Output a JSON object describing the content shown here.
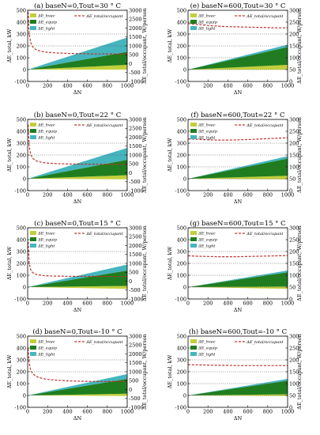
{
  "figure": {
    "xlabel": "ΔN",
    "ylabel_left": "ΔE_total, kW",
    "ylabel_right": "ΔE_total/occupant, W/person"
  },
  "legend": {
    "hvac": "ΔE_hvac",
    "equip": "ΔE_equip",
    "light": "ΔE_light",
    "total_per_occupant": "ΔE_total/occupant"
  },
  "colors": {
    "hvac": "#c2cf3a",
    "equip": "#1f7d1f",
    "light": "#45b5be",
    "per_occupant": "#c0302a",
    "hgrid": "#555555"
  },
  "chart_data": [
    {
      "type": "area",
      "label": "(a) baseN=0,Tout=30 ° C",
      "x": [
        0,
        1000
      ],
      "xlim": [
        0,
        1000
      ],
      "xticks": [
        0,
        200,
        400,
        600,
        800,
        1000
      ],
      "ylim": [
        -100,
        500
      ],
      "yticks": [
        -100,
        0,
        100,
        200,
        300,
        400,
        500
      ],
      "y2lim": [
        -1000,
        3000
      ],
      "y2ticks": [
        -1000,
        -500,
        0,
        500,
        1000,
        1500,
        2000,
        2500,
        3000
      ],
      "grid_y": [
        200,
        300
      ],
      "series": [
        {
          "name": "ΔE_hvac",
          "lower": [
            0,
            0
          ],
          "upper": [
            0,
            40
          ]
        },
        {
          "name": "ΔE_equip",
          "lower": [
            0,
            40
          ],
          "upper": [
            0,
            150
          ]
        },
        {
          "name": "ΔE_light",
          "lower": [
            0,
            150
          ],
          "upper": [
            0,
            270
          ]
        }
      ],
      "per_occupant": {
        "x": [
          5,
          15,
          30,
          50,
          75,
          100,
          150,
          200,
          300,
          400,
          500,
          600,
          700,
          800,
          900,
          1000
        ],
        "y": [
          2900,
          1700,
          1200,
          950,
          820,
          750,
          680,
          640,
          600,
          580,
          565,
          555,
          548,
          545,
          542,
          540
        ]
      }
    },
    {
      "type": "area",
      "label": "(e) baseN=600,Tout=30 ° C",
      "x": [
        0,
        1000
      ],
      "xlim": [
        0,
        1000
      ],
      "xticks": [
        0,
        200,
        400,
        600,
        800,
        1000
      ],
      "ylim": [
        -100,
        500
      ],
      "yticks": [
        -100,
        0,
        100,
        200,
        300,
        400,
        500
      ],
      "y2lim": [
        0,
        300
      ],
      "y2ticks": [
        0,
        50,
        100,
        150,
        200,
        250,
        300
      ],
      "grid_y": [
        0,
        100,
        200,
        300
      ],
      "series": [
        {
          "name": "ΔE_hvac",
          "lower": [
            0,
            0
          ],
          "upper": [
            0,
            40
          ]
        },
        {
          "name": "ΔE_equip",
          "lower": [
            0,
            40
          ],
          "upper": [
            0,
            190
          ]
        },
        {
          "name": "ΔE_light",
          "lower": [
            0,
            190
          ],
          "upper": [
            0,
            210
          ]
        }
      ],
      "per_occupant": {
        "x": [
          0,
          100,
          200,
          300,
          400,
          500,
          600,
          700,
          800,
          900,
          1000
        ],
        "y": [
          244,
          240,
          236,
          233,
          231,
          230,
          229,
          228,
          227,
          226,
          226
        ]
      }
    },
    {
      "type": "area",
      "label": "(b) baseN=0,Tout=22 ° C",
      "x": [
        0,
        1000
      ],
      "xlim": [
        0,
        1000
      ],
      "xticks": [
        0,
        200,
        400,
        600,
        800,
        1000
      ],
      "ylim": [
        -100,
        500
      ],
      "yticks": [
        -100,
        0,
        100,
        200,
        300,
        400,
        500
      ],
      "y2lim": [
        -1000,
        3000
      ],
      "y2ticks": [
        -1000,
        -500,
        0,
        500,
        1000,
        1500,
        2000,
        2500,
        3000
      ],
      "grid_y": [
        200,
        300
      ],
      "series": [
        {
          "name": "ΔE_hvac",
          "lower": [
            0,
            -5
          ],
          "upper": [
            0,
            30
          ]
        },
        {
          "name": "ΔE_equip",
          "lower": [
            0,
            30
          ],
          "upper": [
            0,
            160
          ]
        },
        {
          "name": "ΔE_light",
          "lower": [
            0,
            160
          ],
          "upper": [
            0,
            260
          ]
        }
      ],
      "per_occupant": {
        "x": [
          5,
          15,
          30,
          50,
          75,
          100,
          150,
          200,
          300,
          400,
          500,
          600,
          700,
          800,
          900,
          1000
        ],
        "y": [
          2700,
          1500,
          1050,
          820,
          700,
          640,
          580,
          545,
          515,
          500,
          490,
          485,
          480,
          478,
          476,
          475
        ]
      }
    },
    {
      "type": "area",
      "label": "(f) baseN=600,Tout=22 ° C",
      "x": [
        0,
        1000
      ],
      "xlim": [
        0,
        1000
      ],
      "xticks": [
        0,
        200,
        400,
        600,
        800,
        1000
      ],
      "ylim": [
        -100,
        500
      ],
      "yticks": [
        -100,
        0,
        100,
        200,
        300,
        400,
        500
      ],
      "y2lim": [
        0,
        300
      ],
      "y2ticks": [
        0,
        50,
        100,
        150,
        200,
        250,
        300
      ],
      "grid_y": [
        0,
        100,
        200,
        300
      ],
      "series": [
        {
          "name": "ΔE_hvac",
          "lower": [
            0,
            -5
          ],
          "upper": [
            0,
            25
          ]
        },
        {
          "name": "ΔE_equip",
          "lower": [
            0,
            25
          ],
          "upper": [
            0,
            170
          ]
        },
        {
          "name": "ΔE_light",
          "lower": [
            0,
            170
          ],
          "upper": [
            0,
            190
          ]
        }
      ],
      "per_occupant": {
        "x": [
          0,
          100,
          200,
          300,
          400,
          500,
          600,
          700,
          800,
          900,
          1000
        ],
        "y": [
          218,
          216,
          214,
          213,
          213,
          214,
          215,
          217,
          219,
          221,
          223
        ]
      }
    },
    {
      "type": "area",
      "label": "(c) baseN=0,Tout=15 ° C",
      "x": [
        0,
        1000
      ],
      "xlim": [
        0,
        1000
      ],
      "xticks": [
        0,
        200,
        400,
        600,
        800,
        1000
      ],
      "ylim": [
        -100,
        500
      ],
      "yticks": [
        -100,
        0,
        100,
        200,
        300,
        400,
        500
      ],
      "y2lim": [
        -1000,
        3000
      ],
      "y2ticks": [
        -1000,
        -500,
        0,
        500,
        1000,
        1500,
        2000,
        2500,
        3000
      ],
      "grid_y": [
        200,
        300
      ],
      "series": [
        {
          "name": "ΔE_hvac",
          "lower": [
            0,
            -15
          ],
          "upper": [
            0,
            10
          ]
        },
        {
          "name": "ΔE_equip",
          "lower": [
            0,
            10
          ],
          "upper": [
            0,
            140
          ]
        },
        {
          "name": "ΔE_light",
          "lower": [
            0,
            140
          ],
          "upper": [
            0,
            190
          ]
        }
      ],
      "per_occupant": {
        "x": [
          5,
          15,
          30,
          50,
          75,
          100,
          150,
          200,
          300,
          400,
          500,
          600,
          700,
          800,
          900,
          1000
        ],
        "y": [
          2200,
          1000,
          650,
          480,
          400,
          360,
          320,
          300,
          285,
          275,
          270,
          268,
          266,
          265,
          265,
          265
        ]
      }
    },
    {
      "type": "area",
      "label": "(g) baseN=600,Tout=15 ° C",
      "x": [
        0,
        1000
      ],
      "xlim": [
        0,
        1000
      ],
      "xticks": [
        0,
        200,
        400,
        600,
        800,
        1000
      ],
      "ylim": [
        -100,
        500
      ],
      "yticks": [
        -100,
        0,
        100,
        200,
        300,
        400,
        500
      ],
      "y2lim": [
        0,
        300
      ],
      "y2ticks": [
        0,
        50,
        100,
        150,
        200,
        250,
        300
      ],
      "grid_y": [
        0,
        100,
        200,
        300
      ],
      "series": [
        {
          "name": "ΔE_hvac",
          "lower": [
            0,
            -15
          ],
          "upper": [
            0,
            5
          ]
        },
        {
          "name": "ΔE_equip",
          "lower": [
            0,
            5
          ],
          "upper": [
            0,
            125
          ]
        },
        {
          "name": "ΔE_light",
          "lower": [
            0,
            125
          ],
          "upper": [
            0,
            140
          ]
        }
      ],
      "per_occupant": {
        "x": [
          0,
          100,
          200,
          300,
          400,
          500,
          600,
          700,
          800,
          900,
          1000
        ],
        "y": [
          182,
          180,
          179,
          178,
          178,
          178,
          179,
          180,
          181,
          182,
          183
        ]
      }
    },
    {
      "type": "area",
      "label": "(d) baseN=0,Tout=-10 ° C",
      "x": [
        0,
        1000
      ],
      "xlim": [
        0,
        1000
      ],
      "xticks": [
        0,
        200,
        400,
        600,
        800,
        1000
      ],
      "ylim": [
        -100,
        500
      ],
      "yticks": [
        -100,
        0,
        100,
        200,
        300,
        400,
        500
      ],
      "y2lim": [
        -1000,
        3000
      ],
      "y2ticks": [
        -1000,
        -500,
        0,
        500,
        1000,
        1500,
        2000,
        2500,
        3000
      ],
      "grid_y": [
        200,
        300
      ],
      "series": [
        {
          "name": "ΔE_hvac",
          "lower": [
            0,
            -5
          ],
          "upper": [
            0,
            15
          ]
        },
        {
          "name": "ΔE_equip",
          "lower": [
            0,
            15
          ],
          "upper": [
            0,
            140
          ]
        },
        {
          "name": "ΔE_light",
          "lower": [
            0,
            140
          ],
          "upper": [
            0,
            180
          ]
        }
      ],
      "per_occupant": {
        "x": [
          5,
          15,
          30,
          50,
          75,
          100,
          150,
          200,
          300,
          400,
          500,
          600,
          700,
          800,
          900,
          1000
        ],
        "y": [
          2300,
          1500,
          1100,
          900,
          780,
          700,
          620,
          570,
          520,
          490,
          470,
          460,
          455,
          450,
          448,
          445
        ]
      }
    },
    {
      "type": "area",
      "label": "(h) baseN=600,Tout=-10 ° C",
      "x": [
        0,
        1000
      ],
      "xlim": [
        0,
        1000
      ],
      "xticks": [
        0,
        200,
        400,
        600,
        800,
        1000
      ],
      "ylim": [
        -100,
        500
      ],
      "yticks": [
        -100,
        0,
        100,
        200,
        300,
        400,
        500
      ],
      "y2lim": [
        0,
        300
      ],
      "y2ticks": [
        0,
        50,
        100,
        150,
        200,
        250,
        300
      ],
      "grid_y": [
        0,
        100,
        200,
        300
      ],
      "series": [
        {
          "name": "ΔE_hvac",
          "lower": [
            0,
            -5
          ],
          "upper": [
            0,
            10
          ]
        },
        {
          "name": "ΔE_equip",
          "lower": [
            0,
            10
          ],
          "upper": [
            0,
            125
          ]
        },
        {
          "name": "ΔE_light",
          "lower": [
            0,
            125
          ],
          "upper": [
            0,
            140
          ]
        }
      ],
      "per_occupant": {
        "x": [
          0,
          100,
          200,
          300,
          400,
          500,
          600,
          700,
          800,
          900,
          1000
        ],
        "y": [
          180,
          179,
          178,
          177,
          177,
          176,
          176,
          176,
          176,
          176,
          176
        ]
      }
    }
  ]
}
